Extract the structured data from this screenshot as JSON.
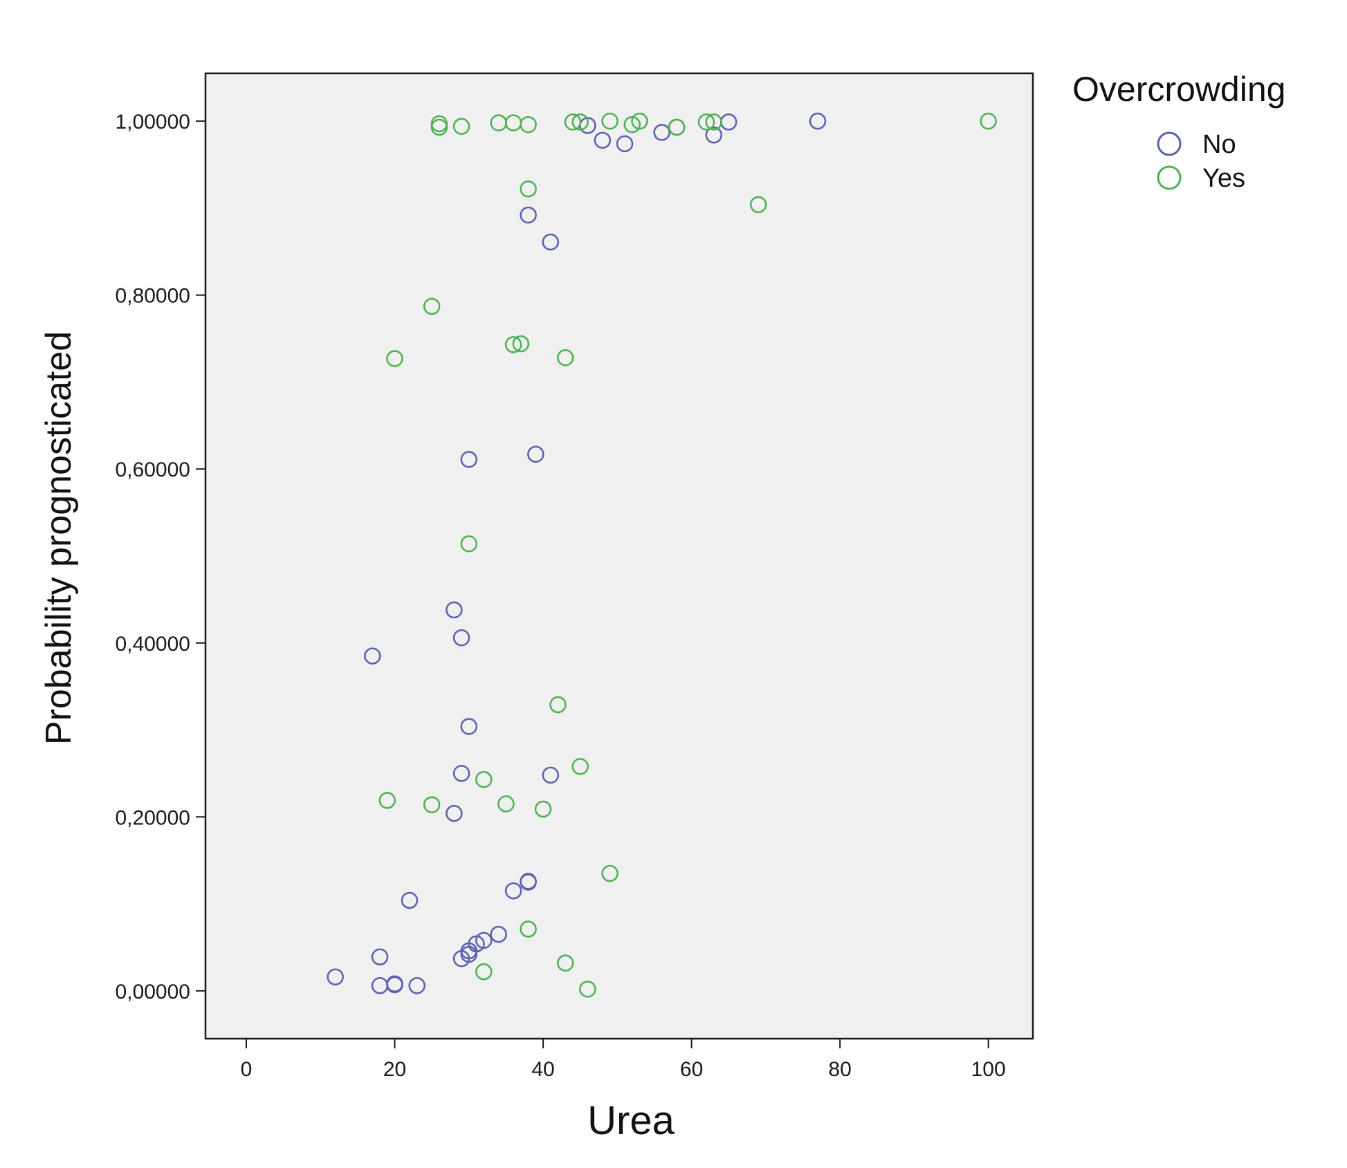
{
  "chart_data": {
    "type": "scatter",
    "title": "",
    "xlabel": "Urea",
    "ylabel": "Probability prognosticated",
    "xlim": [
      -5.5,
      106
    ],
    "ylim": [
      -0.055,
      1.055
    ],
    "xticks": [
      {
        "value": 0,
        "label": "0"
      },
      {
        "value": 20,
        "label": "20"
      },
      {
        "value": 40,
        "label": "40"
      },
      {
        "value": 60,
        "label": "60"
      },
      {
        "value": 80,
        "label": "80"
      },
      {
        "value": 100,
        "label": "100"
      }
    ],
    "yticks": [
      {
        "value": 0.0,
        "label": "0,00000"
      },
      {
        "value": 0.2,
        "label": "0,20000"
      },
      {
        "value": 0.4,
        "label": "0,40000"
      },
      {
        "value": 0.6,
        "label": "0,60000"
      },
      {
        "value": 0.8,
        "label": "0,80000"
      },
      {
        "value": 1.0,
        "label": "1,00000"
      }
    ],
    "grid": false,
    "legend": {
      "title": "Overcrowding",
      "placement": "top-right, outside plot"
    },
    "marker": "hollow circle",
    "series": [
      {
        "name": "No",
        "color": "#5a5fb0",
        "points": [
          [
            12,
            0.016
          ],
          [
            18,
            0.006
          ],
          [
            18,
            0.039
          ],
          [
            20,
            0.007
          ],
          [
            20,
            0.008
          ],
          [
            23,
            0.006
          ],
          [
            22,
            0.104
          ],
          [
            29,
            0.037
          ],
          [
            30,
            0.042
          ],
          [
            30,
            0.046
          ],
          [
            31,
            0.054
          ],
          [
            32,
            0.058
          ],
          [
            34,
            0.065
          ],
          [
            36,
            0.115
          ],
          [
            38,
            0.125
          ],
          [
            38,
            0.126
          ],
          [
            28,
            0.204
          ],
          [
            29,
            0.25
          ],
          [
            41,
            0.248
          ],
          [
            30,
            0.304
          ],
          [
            17,
            0.385
          ],
          [
            29,
            0.406
          ],
          [
            28,
            0.438
          ],
          [
            30,
            0.611
          ],
          [
            39,
            0.617
          ],
          [
            41,
            0.861
          ],
          [
            38,
            0.892
          ],
          [
            46,
            0.995
          ],
          [
            48,
            0.978
          ],
          [
            51,
            0.974
          ],
          [
            56,
            0.987
          ],
          [
            58,
            0.993
          ],
          [
            63,
            0.984
          ],
          [
            65,
            0.999
          ],
          [
            77,
            1.0
          ]
        ]
      },
      {
        "name": "Yes",
        "color": "#4cb050",
        "points": [
          [
            32,
            0.022
          ],
          [
            43,
            0.032
          ],
          [
            46,
            0.002
          ],
          [
            38,
            0.071
          ],
          [
            49,
            0.135
          ],
          [
            19,
            0.219
          ],
          [
            25,
            0.214
          ],
          [
            32,
            0.243
          ],
          [
            35,
            0.215
          ],
          [
            40,
            0.209
          ],
          [
            45,
            0.258
          ],
          [
            42,
            0.329
          ],
          [
            30,
            0.514
          ],
          [
            20,
            0.727
          ],
          [
            36,
            0.743
          ],
          [
            37,
            0.744
          ],
          [
            43,
            0.728
          ],
          [
            25,
            0.787
          ],
          [
            69,
            0.904
          ],
          [
            38,
            0.922
          ],
          [
            26,
            0.993
          ],
          [
            26,
            0.997
          ],
          [
            29,
            0.994
          ],
          [
            34,
            0.998
          ],
          [
            36,
            0.998
          ],
          [
            38,
            0.996
          ],
          [
            44,
            0.999
          ],
          [
            45,
            0.999
          ],
          [
            49,
            1.0
          ],
          [
            52,
            0.996
          ],
          [
            53,
            1.0
          ],
          [
            58,
            0.993
          ],
          [
            62,
            0.999
          ],
          [
            63,
            0.999
          ],
          [
            100,
            1.0
          ]
        ]
      }
    ]
  }
}
